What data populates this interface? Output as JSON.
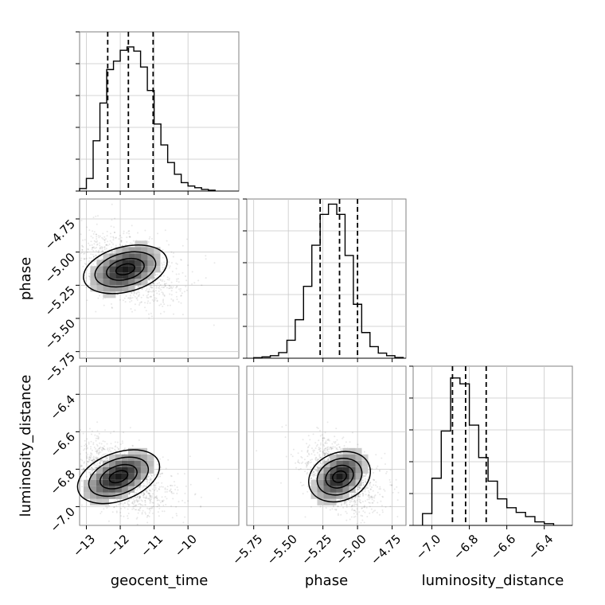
{
  "figure": {
    "type": "corner_plot",
    "parameters": [
      "geocent_time",
      "phase",
      "luminosity_distance"
    ]
  },
  "chart_data": [
    {
      "type": "bar",
      "panel": "geocent_time marginal",
      "xlabel": "geocent_time",
      "xlim": [
        -13.2,
        -8.5
      ],
      "xticks": [
        -13,
        -12,
        -11,
        -10
      ],
      "x_tick_labels": [
        "−13",
        "−12",
        "−11",
        "−10"
      ],
      "bin_edges": [
        -13.2,
        -13.0,
        -12.8,
        -12.6,
        -12.4,
        -12.2,
        -12.0,
        -11.8,
        -11.6,
        -11.4,
        -11.2,
        -11.0,
        -10.8,
        -10.6,
        -10.4,
        -10.2,
        -10.0,
        -9.8,
        -9.6,
        -9.4,
        -9.2
      ],
      "values": [
        3,
        15,
        60,
        105,
        145,
        155,
        168,
        172,
        167,
        148,
        120,
        80,
        55,
        34,
        20,
        10,
        6,
        4,
        2,
        1
      ],
      "ylim": [
        0,
        190
      ],
      "quantiles": [
        -12.37,
        -11.76,
        -11.03
      ]
    },
    {
      "type": "bar",
      "panel": "phase marginal",
      "xlabel": "phase",
      "xlim": [
        -5.8,
        -4.65
      ],
      "xticks": [
        -5.75,
        -5.5,
        -5.25,
        -5.0,
        -4.75
      ],
      "x_tick_labels": [
        "−5.75",
        "−5.50",
        "−5.25",
        "−5.00",
        "−4.75"
      ],
      "bin_edges": [
        -5.75,
        -5.69,
        -5.63,
        -5.57,
        -5.51,
        -5.45,
        -5.39,
        -5.33,
        -5.27,
        -5.21,
        -5.15,
        -5.09,
        -5.03,
        -4.97,
        -4.91,
        -4.85,
        -4.79,
        -4.73,
        -4.67
      ],
      "values": [
        2,
        5,
        10,
        22,
        70,
        150,
        280,
        440,
        560,
        600,
        560,
        400,
        210,
        100,
        45,
        20,
        10,
        3
      ],
      "ylim": [
        0,
        620
      ],
      "quantiles": [
        -5.27,
        -5.13,
        -5.0
      ]
    },
    {
      "type": "bar",
      "panel": "luminosity_distance marginal",
      "xlabel": "luminosity_distance",
      "xlim": [
        -7.1,
        -6.25
      ],
      "xticks": [
        -7.0,
        -6.8,
        -6.6,
        -6.4
      ],
      "x_tick_labels": [
        "−7.0",
        "−6.8",
        "−6.6",
        "−6.4"
      ],
      "bin_edges": [
        -7.05,
        -7.0,
        -6.95,
        -6.9,
        -6.85,
        -6.8,
        -6.75,
        -6.7,
        -6.65,
        -6.6,
        -6.55,
        -6.5,
        -6.45,
        -6.4,
        -6.35
      ],
      "values": [
        20,
        80,
        160,
        250,
        240,
        170,
        115,
        75,
        45,
        30,
        22,
        15,
        6,
        3
      ],
      "ylim": [
        0,
        270
      ],
      "quantiles": [
        -6.89,
        -6.82,
        -6.71
      ]
    },
    {
      "type": "heatmap",
      "panel": "phase vs geocent_time",
      "xlabel": "geocent_time",
      "ylabel": "phase",
      "xlim": [
        -13.2,
        -8.5
      ],
      "ylim": [
        -5.8,
        -4.6
      ],
      "yticks": [
        -5.75,
        -5.5,
        -5.25,
        -5.0,
        -4.75
      ],
      "y_tick_labels": [
        "−5.75",
        "−5.50",
        "−5.25",
        "−5.00",
        "−4.75"
      ],
      "peak": [
        -11.85,
        -5.13
      ],
      "contour_levels": 4
    },
    {
      "type": "heatmap",
      "panel": "luminosity_distance vs geocent_time",
      "xlabel": "geocent_time",
      "ylabel": "luminosity_distance",
      "xlim": [
        -13.2,
        -8.5
      ],
      "ylim": [
        -7.1,
        -6.25
      ],
      "yticks": [
        -7.0,
        -6.8,
        -6.6,
        -6.4
      ],
      "y_tick_labels": [
        "−7.0",
        "−6.8",
        "−6.6",
        "−6.4"
      ],
      "peak": [
        -12.05,
        -6.84
      ],
      "contour_levels": 4
    },
    {
      "type": "heatmap",
      "panel": "luminosity_distance vs phase",
      "xlabel": "phase",
      "ylabel": "luminosity_distance",
      "xlim": [
        -5.8,
        -4.65
      ],
      "ylim": [
        -7.1,
        -6.25
      ],
      "peak": [
        -5.13,
        -6.84
      ],
      "contour_levels": 4
    }
  ]
}
